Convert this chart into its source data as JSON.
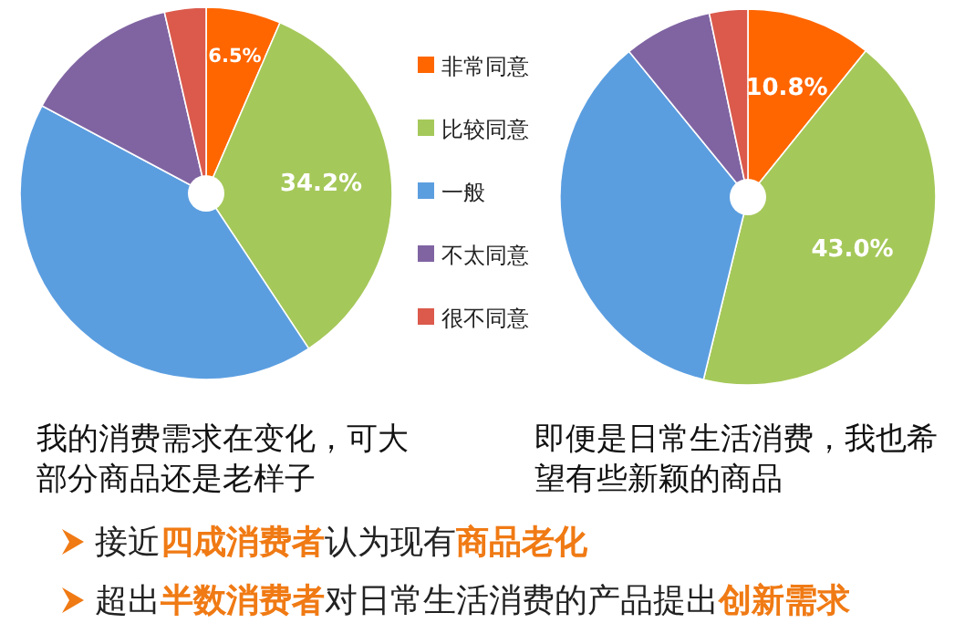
{
  "chart_data": [
    {
      "type": "pie",
      "title": "我的消费需求在变化，可大部分商品还是老样子",
      "categories": [
        "非常同意",
        "比较同意",
        "一般",
        "不太同意",
        "很不同意"
      ],
      "values": [
        6.5,
        34.2,
        42.1,
        13.6,
        3.6
      ],
      "colors": [
        "#ff6600",
        "#a5c85a",
        "#5b9ee0",
        "#8064a2",
        "#db5a4c"
      ],
      "value_labels": [
        "6.5%",
        "34.2%",
        null,
        null,
        null
      ],
      "legend": "right",
      "annotations": [
        "接近**四成消费者**认为现有**商品老化**",
        "超出**半数消费者**对日常生活消费的产品提出**创新需求**"
      ]
    },
    {
      "type": "pie",
      "title": "即便是日常生活消费，我也希望有些新颖的商品",
      "categories": [
        null,
        null,
        null,
        null,
        null
      ],
      "values": [
        10.8,
        43.0,
        35.3,
        7.6,
        3.3
      ],
      "colors": [
        "#ff6600",
        "#a5c85a",
        "#5b9ee0",
        "#8064a2",
        "#db5a4c"
      ],
      "value_labels": [
        "10.8%",
        "43.0%",
        null,
        null,
        null
      ]
    }
  ]
}
